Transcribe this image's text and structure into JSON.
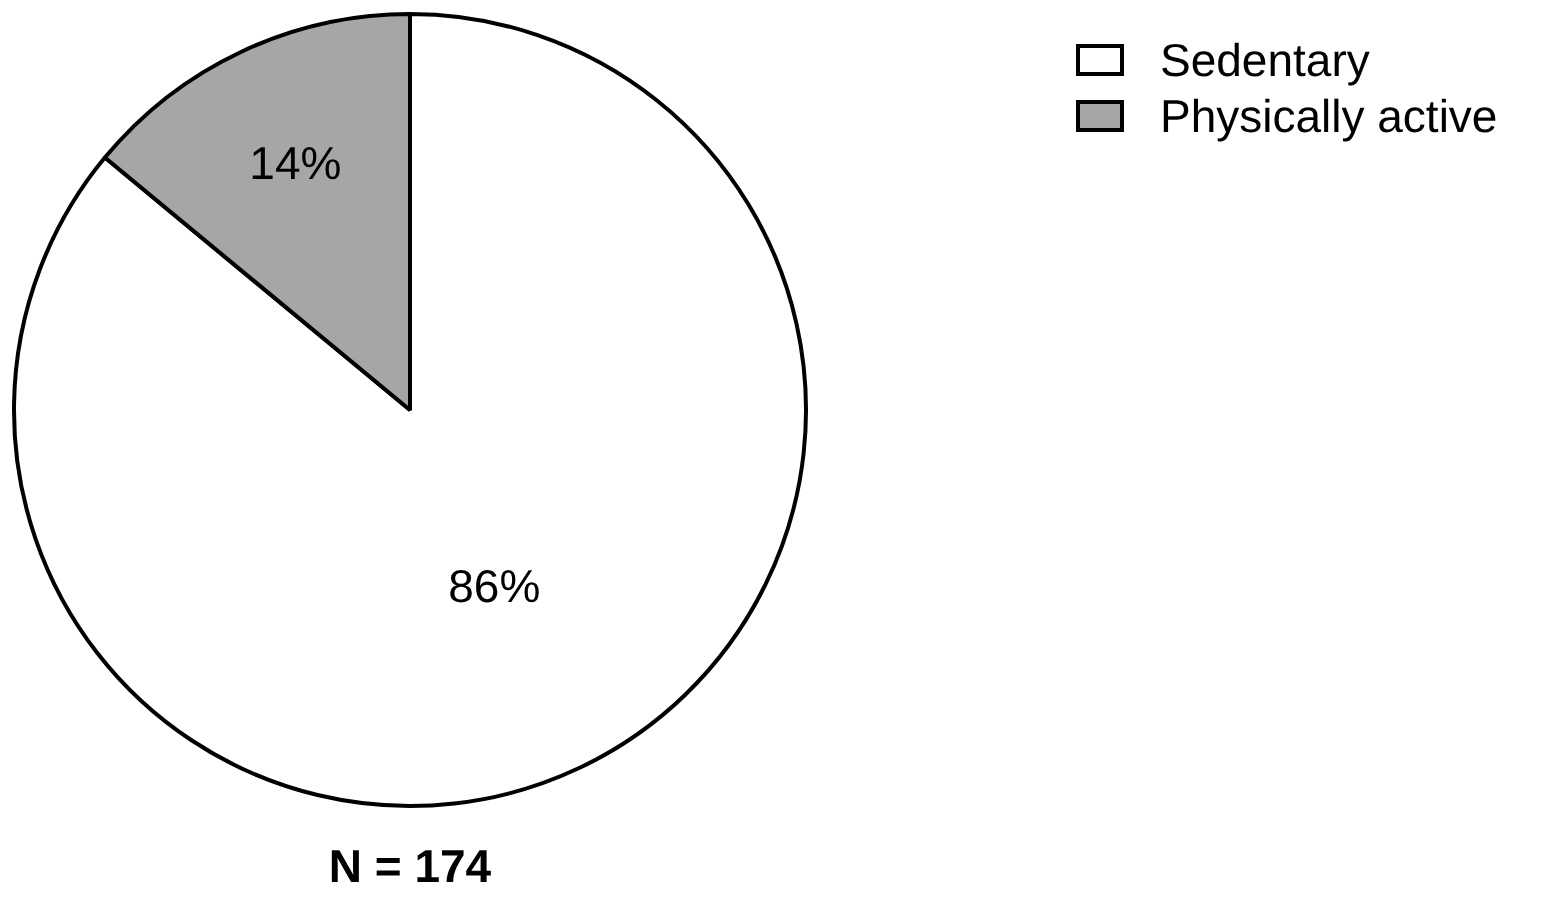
{
  "chart_data": {
    "type": "pie",
    "categories": [
      "Sedentary",
      "Physically active"
    ],
    "values": [
      86,
      14
    ],
    "colors": [
      "#ffffff",
      "#a6a6a8"
    ],
    "value_labels": [
      "86%",
      "14%"
    ],
    "legend": "top right",
    "annotations": [
      "N = 174"
    ]
  }
}
